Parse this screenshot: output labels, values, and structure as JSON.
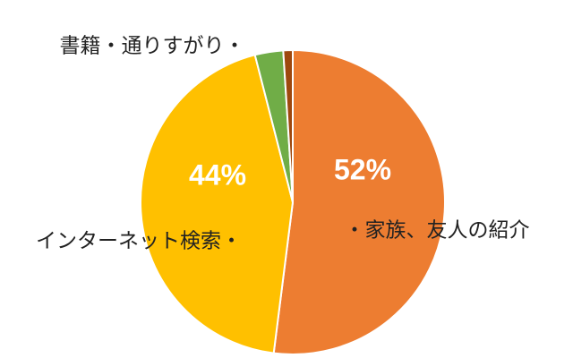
{
  "chart_data": {
    "type": "pie",
    "categories": [
      "・家族、友人の紹介",
      "インターネット検索・",
      "書籍・通りすがり・",
      null
    ],
    "values": [
      52,
      44,
      3,
      1
    ],
    "value_labels": [
      "52%",
      "44%",
      null,
      null
    ],
    "colors": [
      "#ed7d31",
      "#ffc000",
      "#70ad47",
      "#9e480e"
    ]
  }
}
